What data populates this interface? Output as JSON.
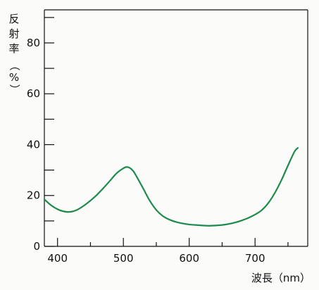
{
  "chart_data": {
    "type": "line",
    "title": "",
    "xlabel": "波長（nm）",
    "ylabel": "反射率（%）",
    "xlim": [
      380,
      780
    ],
    "ylim": [
      0,
      93
    ],
    "x_ticks": [
      400,
      500,
      600,
      700
    ],
    "x_tick_labels": [
      "400",
      "500",
      "600",
      "700"
    ],
    "y_ticks": [
      0,
      20,
      40,
      60,
      80
    ],
    "y_tick_labels": [
      "0",
      "20",
      "40",
      "60",
      "80"
    ],
    "y_minor_ticks": [
      10,
      30,
      50,
      70,
      90
    ],
    "x_minor_ticks": [
      450,
      550,
      650,
      750
    ],
    "grid": false,
    "legend": "none",
    "series": [
      {
        "color": "#1e8a4c",
        "x": [
          380,
          390,
          400,
          410,
          420,
          430,
          440,
          450,
          460,
          470,
          480,
          490,
          500,
          505,
          510,
          515,
          520,
          530,
          540,
          550,
          560,
          570,
          580,
          590,
          600,
          610,
          620,
          630,
          640,
          650,
          660,
          670,
          680,
          690,
          700,
          710,
          720,
          730,
          740,
          750,
          760,
          765
        ],
        "y": [
          18.5,
          16.2,
          14.6,
          13.7,
          13.6,
          14.4,
          16.0,
          18.0,
          20.3,
          23.0,
          25.9,
          28.8,
          30.7,
          31.2,
          30.8,
          29.6,
          27.5,
          22.8,
          18.0,
          14.3,
          11.9,
          10.5,
          9.6,
          9.0,
          8.6,
          8.4,
          8.2,
          8.1,
          8.2,
          8.4,
          8.8,
          9.4,
          10.2,
          11.2,
          12.5,
          14.2,
          17.0,
          21.0,
          26.0,
          31.8,
          37.3,
          38.7
        ]
      }
    ]
  }
}
